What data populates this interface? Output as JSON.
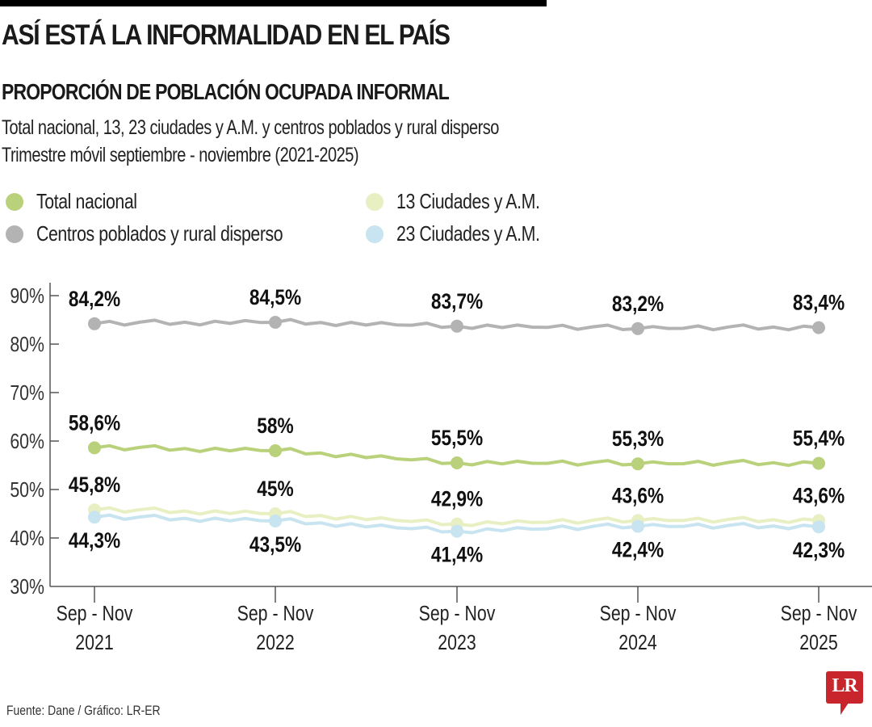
{
  "header": {
    "title": "ASÍ ESTÁ LA INFORMALIDAD EN EL PAÍS",
    "subtitle": "PROPORCIÓN DE POBLACIÓN OCUPADA INFORMAL",
    "description_line1": "Total nacional, 13, 23 ciudades y A.M. y centros poblados y rural disperso",
    "description_line2": "Trimestre móvil septiembre - noviembre (2021-2025)"
  },
  "footer": {
    "source": "Fuente: Dane / Gráfico: LR-ER",
    "logo_text": "LR",
    "logo_color": "#c8262c"
  },
  "chart_data": {
    "type": "line",
    "title": "PROPORCIÓN DE POBLACIÓN OCUPADA INFORMAL",
    "xlabel": "",
    "ylabel": "",
    "ylim": [
      30,
      90
    ],
    "y_ticks": [
      "30%",
      "40%",
      "50%",
      "60%",
      "70%",
      "80%",
      "90%"
    ],
    "y_tick_values": [
      30,
      40,
      50,
      60,
      70,
      80,
      90
    ],
    "categories": [
      [
        "Sep - Nov",
        "2021"
      ],
      [
        "Sep - Nov",
        "2022"
      ],
      [
        "Sep - Nov",
        "2023"
      ],
      [
        "Sep - Nov",
        "2024"
      ],
      [
        "Sep - Nov",
        "2025"
      ]
    ],
    "grid": false,
    "legend": [
      {
        "name": "Total nacional",
        "color": "#b9d17a"
      },
      {
        "name": "Centros poblados y rural disperso",
        "color": "#b3b3b3"
      },
      {
        "name": "13 Ciudades y A.M.",
        "color": "#e8efc2"
      },
      {
        "name": "23 Ciudades y A.M.",
        "color": "#c7e4f0"
      }
    ],
    "legend_position": "top",
    "series": [
      {
        "name": "Centros poblados y rural disperso",
        "color": "#b3b3b3",
        "values": [
          84.2,
          84.5,
          83.7,
          83.2,
          83.4
        ],
        "labels": [
          "84,2%",
          "84,5%",
          "83,7%",
          "83,2%",
          "83,4%"
        ],
        "label_pos": "above"
      },
      {
        "name": "Total nacional",
        "color": "#b9d17a",
        "values": [
          58.6,
          58.0,
          55.5,
          55.3,
          55.4
        ],
        "labels": [
          "58,6%",
          "58%",
          "55,5%",
          "55,3%",
          "55,4%"
        ],
        "label_pos": "above"
      },
      {
        "name": "13 Ciudades y A.M.",
        "color": "#e8efc2",
        "values": [
          45.8,
          45.0,
          42.9,
          43.6,
          43.6
        ],
        "labels": [
          "45,8%",
          "45%",
          "42,9%",
          "43,6%",
          "43,6%"
        ],
        "label_pos": "above"
      },
      {
        "name": "23 Ciudades y A.M.",
        "color": "#c7e4f0",
        "values": [
          44.3,
          43.5,
          41.4,
          42.4,
          42.3
        ],
        "labels": [
          "44,3%",
          "43,5%",
          "41,4%",
          "42,4%",
          "42,3%"
        ],
        "label_pos": "below"
      }
    ]
  }
}
